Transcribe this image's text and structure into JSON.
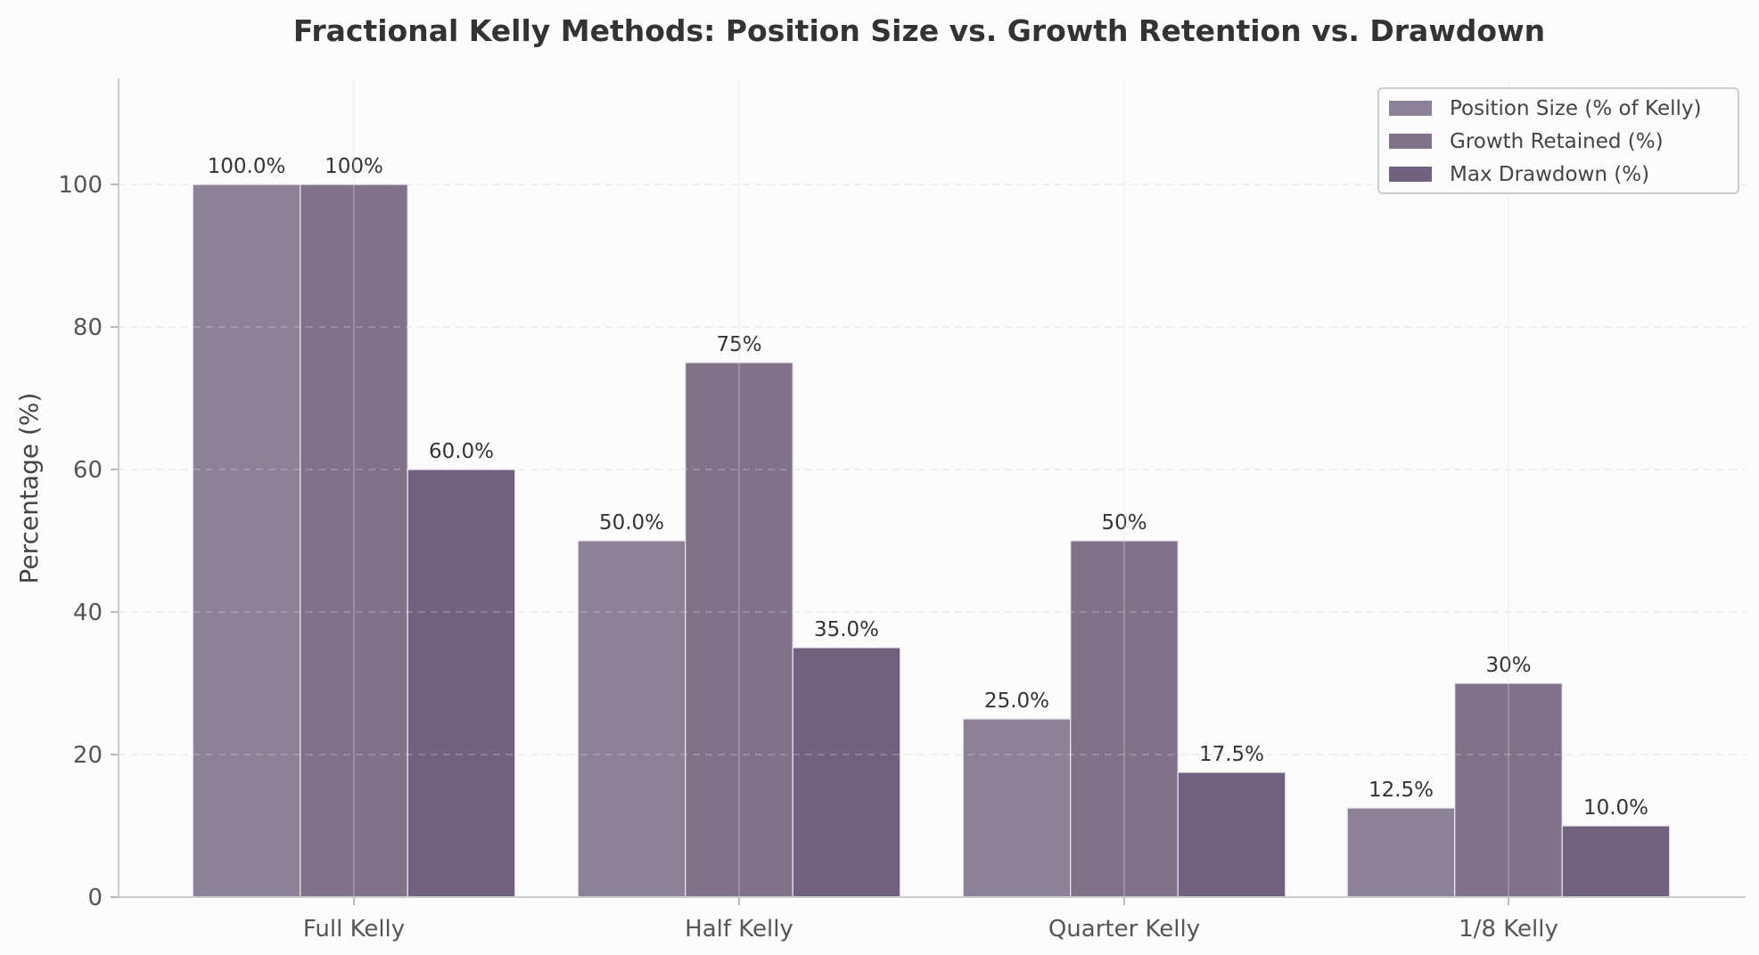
{
  "chart_data": {
    "type": "bar",
    "title": "Fractional Kelly Methods: Position Size vs. Growth Retention vs. Drawdown",
    "xlabel": "",
    "ylabel": "Percentage (%)",
    "ylim": [
      0,
      115
    ],
    "yticks": [
      "0",
      "20",
      "40",
      "60",
      "80",
      "100"
    ],
    "categories": [
      "Full Kelly",
      "Half Kelly",
      "Quarter Kelly",
      "1/8 Kelly"
    ],
    "series": [
      {
        "name": "Position Size (% of Kelly)",
        "values": [
          100,
          50,
          25,
          12.5
        ],
        "labels": [
          "100.0%",
          "50.0%",
          "25.0%",
          "12.5%"
        ],
        "color": "#8b8199"
      },
      {
        "name": "Growth Retained (%)",
        "values": [
          100,
          75,
          50,
          30
        ],
        "labels": [
          "100%",
          "75%",
          "50%",
          "30%"
        ],
        "color": "#807289"
      },
      {
        "name": "Max Drawdown (%)",
        "values": [
          60,
          35,
          17.5,
          10
        ],
        "labels": [
          "60.0%",
          "35.0%",
          "17.5%",
          "10.0%"
        ],
        "color": "#716380"
      }
    ],
    "grid": "horizontal-dashed",
    "legend": "top-right"
  }
}
